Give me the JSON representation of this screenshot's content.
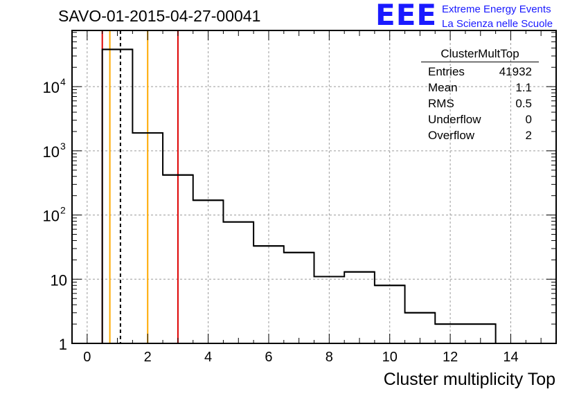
{
  "title": "SAVO-01-2015-04-27-00041",
  "logo": {
    "mark": "EEE",
    "line1": "Extreme Energy Events",
    "line2": "La Scienza nelle Scuole"
  },
  "stats_box": {
    "name": "ClusterMultTop",
    "rows": [
      {
        "label": "Entries",
        "value": "41932"
      },
      {
        "label": "Mean",
        "value": "1.1"
      },
      {
        "label": "RMS",
        "value": "0.5"
      },
      {
        "label": "Underflow",
        "value": "0"
      },
      {
        "label": "Overflow",
        "value": "2"
      }
    ]
  },
  "colors": {
    "red": "#dd0000",
    "orange": "#ffaa00",
    "grid": "#9a9a9a",
    "histogram": "#000000"
  },
  "chart_data": {
    "type": "histogram",
    "title": "SAVO-01-2015-04-27-00041",
    "xlabel": "Cluster multiplicity Top",
    "ylabel": "",
    "y_scale": "log",
    "xlim": [
      -0.5,
      15.5
    ],
    "ylim": [
      1,
      75000
    ],
    "grid": true,
    "bin_edges": [
      0.5,
      1.5,
      2.5,
      3.5,
      4.5,
      5.5,
      6.5,
      7.5,
      8.5,
      9.5,
      10.5,
      11.5,
      12.5,
      13.5
    ],
    "values": [
      38000,
      1900,
      420,
      170,
      78,
      33,
      26,
      11,
      13,
      8,
      3,
      2,
      2
    ],
    "x_ticks": [
      "0",
      "2",
      "4",
      "6",
      "8",
      "10",
      "12",
      "14"
    ],
    "y_ticks": [
      {
        "value": 1,
        "base": "1",
        "exp": ""
      },
      {
        "value": 10,
        "base": "10",
        "exp": ""
      },
      {
        "value": 100,
        "base": "10",
        "exp": "2"
      },
      {
        "value": 1000,
        "base": "10",
        "exp": "3"
      },
      {
        "value": 10000,
        "base": "10",
        "exp": "4"
      }
    ],
    "vertical_lines": [
      {
        "x": 0.5,
        "color": "red",
        "style": "solid"
      },
      {
        "x": 0.75,
        "color": "orange",
        "style": "solid"
      },
      {
        "x": 1.1,
        "color": "black",
        "style": "dashed"
      },
      {
        "x": 2.0,
        "color": "orange",
        "style": "solid"
      },
      {
        "x": 3.0,
        "color": "red",
        "style": "solid"
      }
    ]
  }
}
